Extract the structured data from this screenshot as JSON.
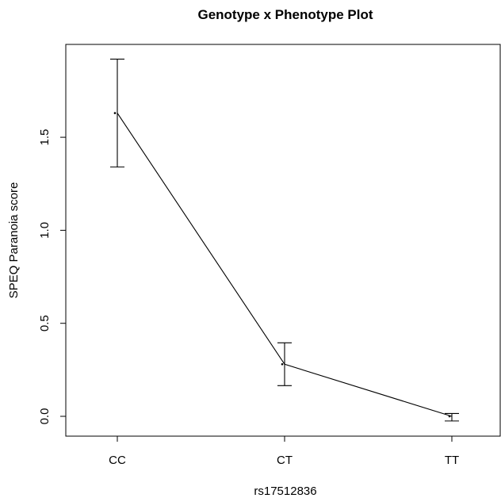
{
  "chart_data": {
    "type": "line",
    "title": "Genotype x Phenotype Plot",
    "xlabel": "rs17512836",
    "ylabel": "SPEQ Paranoia score",
    "categories": [
      "CC",
      "CT",
      "TT"
    ],
    "series": [
      {
        "values": [
          1.63,
          0.28,
          0.0
        ],
        "lower": [
          1.34,
          0.165,
          -0.025
        ],
        "upper": [
          1.92,
          0.395,
          0.015
        ]
      }
    ],
    "ylim": [
      -0.1,
      2.0
    ],
    "yticks": [
      0.0,
      0.5,
      1.0,
      1.5
    ],
    "ytick_labels": [
      "0.0",
      "0.5",
      "1.0",
      "1.5"
    ],
    "grid": false,
    "legend": "none"
  }
}
